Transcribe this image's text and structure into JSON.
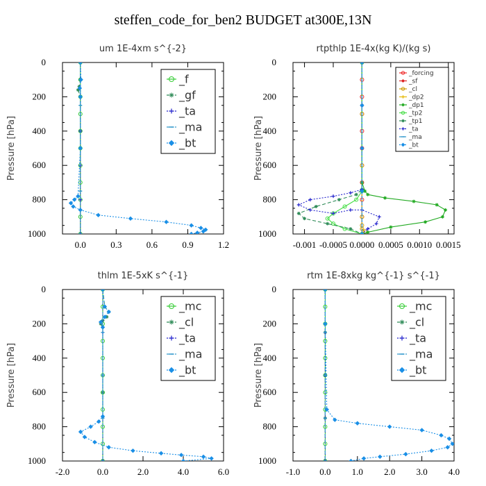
{
  "figure": {
    "title": "steffen_code_for_ben2  BUDGET at300E,13N"
  },
  "chart_data": [
    {
      "type": "line",
      "title": "um  1E-4xm s^{-2}",
      "ylabel": "Pressure [hPa]",
      "xlim": [
        -0.15,
        1.2
      ],
      "ylim": [
        1000,
        0
      ],
      "x_ticks": [
        0,
        0.3,
        0.6,
        0.9,
        1.2
      ],
      "x_tick_labels": [
        "0.0",
        "0.3",
        "0.6",
        "0.9",
        "1.2"
      ],
      "y_ticks": [
        0,
        200,
        400,
        600,
        800,
        1000
      ],
      "legend": {
        "position": "top-right",
        "size": "large"
      },
      "series": [
        {
          "name": "_f",
          "color": "#33cc33",
          "marker": "circle",
          "dash": "solid",
          "x": [
            0,
            0,
            0,
            0,
            0,
            0,
            0,
            0,
            0,
            0,
            0
          ],
          "y": [
            0,
            100,
            200,
            300,
            400,
            500,
            600,
            700,
            800,
            900,
            1000
          ]
        },
        {
          "name": "_gf",
          "color": "#2e8b57",
          "marker": "star",
          "dash": "dash",
          "x": [
            0,
            0,
            -0.01,
            -0.02,
            0,
            0,
            0
          ],
          "y": [
            0,
            100,
            140,
            160,
            200,
            400,
            1000
          ]
        },
        {
          "name": "_ta",
          "color": "#2222cc",
          "marker": "plus",
          "dash": "dot",
          "x": [
            0,
            0,
            0,
            0,
            0,
            0
          ],
          "y": [
            0,
            200,
            400,
            600,
            800,
            1000
          ]
        },
        {
          "name": "_ma",
          "color": "#3399cc",
          "marker": "dash",
          "dash": "dash",
          "x": [
            0,
            0,
            0,
            0,
            0
          ],
          "y": [
            0,
            250,
            500,
            750,
            1000
          ]
        },
        {
          "name": "_bt",
          "color": "#1a8fe6",
          "marker": "diamond",
          "dash": "dot",
          "x": [
            0,
            0.005,
            -0.005,
            0,
            0,
            -0.02,
            -0.05,
            -0.08,
            -0.06,
            0,
            0.15,
            0.42,
            0.72,
            0.93,
            1.01,
            1.05,
            1.03,
            0.98,
            0.93
          ],
          "y": [
            0,
            100,
            150,
            200,
            500,
            780,
            800,
            820,
            840,
            860,
            890,
            910,
            930,
            950,
            965,
            975,
            985,
            993,
            1000
          ]
        }
      ]
    },
    {
      "type": "line",
      "title": "rtpthlp  1E-4x(kg K)/(kg s)",
      "ylabel": "Pressure [hPa]",
      "xlim": [
        -0.0012,
        0.0016
      ],
      "ylim": [
        1000,
        0
      ],
      "x_ticks": [
        -0.001,
        -0.0005,
        0,
        0.0005,
        0.001,
        0.0015
      ],
      "x_tick_labels": [
        "-0.001",
        "-0.0005",
        "0.0000",
        "0.0005",
        "0.0010",
        "0.0015"
      ],
      "y_ticks": [
        0,
        200,
        400,
        600,
        800,
        1000
      ],
      "legend": {
        "position": "top-right",
        "size": "small"
      },
      "series": [
        {
          "name": "_forcing",
          "color": "#ee2222",
          "marker": "circle",
          "dash": "solid",
          "x": [
            0,
            0,
            0,
            0,
            0,
            0,
            0,
            0,
            0,
            0,
            0
          ],
          "y": [
            0,
            100,
            200,
            300,
            400,
            500,
            600,
            700,
            800,
            900,
            1000
          ]
        },
        {
          "name": "_sf",
          "color": "#dd2222",
          "marker": "star",
          "dash": "solid",
          "x": [
            0,
            0,
            0,
            0,
            0
          ],
          "y": [
            0,
            250,
            500,
            750,
            1000
          ]
        },
        {
          "name": "_cl",
          "color": "#cc9900",
          "marker": "circle",
          "dash": "solid",
          "x": [
            0,
            0,
            0,
            0,
            0,
            0,
            5e-05,
            0
          ],
          "y": [
            0,
            300,
            600,
            900,
            950,
            970,
            985,
            1000
          ]
        },
        {
          "name": "_dp2",
          "color": "#e6b800",
          "marker": "plus",
          "dash": "solid",
          "x": [
            0,
            0,
            0,
            0,
            0
          ],
          "y": [
            0,
            250,
            500,
            750,
            1000
          ]
        },
        {
          "name": "_dp1",
          "color": "#22aa22",
          "marker": "star",
          "dash": "solid",
          "x": [
            0,
            0,
            5e-05,
            0.0001,
            0.0004,
            0.0009,
            0.0013,
            0.00145,
            0.0014,
            0.0011,
            0.0005,
            0.0001,
            0
          ],
          "y": [
            0,
            700,
            750,
            770,
            790,
            810,
            830,
            860,
            900,
            930,
            960,
            990,
            1000
          ]
        },
        {
          "name": "_tp2",
          "color": "#44dd44",
          "marker": "circle",
          "dash": "solid",
          "x": [
            0,
            0,
            -0.0001,
            -0.0003,
            -0.0005,
            -0.0006,
            -0.0005,
            -0.0003,
            0
          ],
          "y": [
            0,
            750,
            800,
            840,
            880,
            910,
            940,
            970,
            1000
          ]
        },
        {
          "name": "_tp1",
          "color": "#2e8b57",
          "marker": "star",
          "dash": "dash",
          "x": [
            0,
            0,
            -0.0001,
            -0.0004,
            -0.0008,
            -0.0011,
            -0.001,
            -0.0006,
            -0.0002,
            0
          ],
          "y": [
            0,
            740,
            770,
            800,
            840,
            880,
            910,
            940,
            970,
            1000
          ]
        },
        {
          "name": "_ta",
          "color": "#2222cc",
          "marker": "plus",
          "dash": "dot",
          "x": [
            0,
            0,
            -0.0002,
            -0.0005,
            -0.0009,
            -0.0011,
            -0.0009,
            -0.0005,
            -0.0002,
            0,
            0.0003,
            0.00025,
            0.0001,
            0
          ],
          "y": [
            0,
            740,
            760,
            780,
            800,
            830,
            860,
            880,
            860,
            860,
            900,
            940,
            970,
            1000
          ]
        },
        {
          "name": "_ma",
          "color": "#3399cc",
          "marker": "dash",
          "dash": "dash",
          "x": [
            0,
            0,
            0,
            0,
            0
          ],
          "y": [
            0,
            250,
            500,
            750,
            1000
          ]
        },
        {
          "name": "_bt",
          "color": "#1a8fe6",
          "marker": "diamond",
          "dash": "dot",
          "x": [
            0,
            0,
            0,
            0,
            0
          ],
          "y": [
            0,
            250,
            500,
            750,
            1000
          ]
        }
      ]
    },
    {
      "type": "line",
      "title": "thlm  1E-5xK s^{-1}",
      "ylabel": "Pressure [hPa]",
      "xlim": [
        -2,
        6
      ],
      "ylim": [
        1000,
        0
      ],
      "x_ticks": [
        -2,
        0,
        2,
        4,
        6
      ],
      "x_tick_labels": [
        "-2.0",
        "0.0",
        "2.0",
        "4.0",
        "6.0"
      ],
      "y_ticks": [
        0,
        200,
        400,
        600,
        800,
        1000
      ],
      "legend": {
        "position": "top-right",
        "size": "large"
      },
      "series": [
        {
          "name": "_mc",
          "color": "#33cc33",
          "marker": "circle",
          "dash": "solid",
          "x": [
            0,
            0,
            0,
            0,
            0,
            0,
            0,
            0,
            0,
            0,
            0
          ],
          "y": [
            0,
            100,
            200,
            300,
            400,
            500,
            600,
            700,
            800,
            900,
            1000
          ]
        },
        {
          "name": "_cl",
          "color": "#2e8b57",
          "marker": "star",
          "dash": "dash",
          "x": [
            0,
            0.1,
            0.3,
            0.2,
            0,
            -0.1,
            0,
            0,
            0
          ],
          "y": [
            0,
            100,
            130,
            160,
            180,
            200,
            220,
            600,
            1000
          ]
        },
        {
          "name": "_ta",
          "color": "#2222cc",
          "marker": "plus",
          "dash": "dot",
          "x": [
            0,
            0,
            0,
            0,
            0
          ],
          "y": [
            0,
            250,
            500,
            750,
            1000
          ]
        },
        {
          "name": "_ma",
          "color": "#3399cc",
          "marker": "dash",
          "dash": "dash",
          "x": [
            0,
            0,
            0,
            0,
            0
          ],
          "y": [
            0,
            250,
            500,
            750,
            1000
          ]
        },
        {
          "name": "_bt",
          "color": "#1a8fe6",
          "marker": "diamond",
          "dash": "dot",
          "x": [
            0,
            0.1,
            0.3,
            0.1,
            -0.1,
            0,
            0,
            -0.2,
            -0.6,
            -1.1,
            -0.9,
            -0.4,
            0.3,
            1.5,
            2.9,
            3.9,
            5.0,
            5.4,
            4.0
          ],
          "y": [
            0,
            100,
            130,
            160,
            190,
            220,
            740,
            770,
            800,
            830,
            860,
            890,
            920,
            940,
            955,
            965,
            975,
            985,
            1000
          ]
        }
      ]
    },
    {
      "type": "line",
      "title": "rtm  1E-8xkg kg^{-1} s^{-1}",
      "ylabel": "Pressure [hPa]",
      "xlim": [
        -1,
        4
      ],
      "ylim": [
        1000,
        0
      ],
      "x_ticks": [
        -1,
        0,
        1,
        2,
        3,
        4
      ],
      "x_tick_labels": [
        "-1.0",
        "0.0",
        "1.0",
        "2.0",
        "3.0",
        "4.0"
      ],
      "y_ticks": [
        0,
        200,
        400,
        600,
        800,
        1000
      ],
      "legend": {
        "position": "top-right",
        "size": "large"
      },
      "series": [
        {
          "name": "_mc",
          "color": "#33cc33",
          "marker": "circle",
          "dash": "solid",
          "x": [
            0,
            0,
            0,
            0,
            0,
            0,
            0,
            0,
            0,
            0,
            0
          ],
          "y": [
            0,
            100,
            200,
            300,
            400,
            500,
            600,
            700,
            800,
            900,
            1000
          ]
        },
        {
          "name": "_cl",
          "color": "#2e8b57",
          "marker": "star",
          "dash": "dash",
          "x": [
            0,
            0,
            0,
            0,
            0
          ],
          "y": [
            0,
            250,
            500,
            750,
            1000
          ]
        },
        {
          "name": "_ta",
          "color": "#2222cc",
          "marker": "plus",
          "dash": "dot",
          "x": [
            0,
            0,
            0,
            0,
            0
          ],
          "y": [
            0,
            250,
            500,
            750,
            1000
          ]
        },
        {
          "name": "_ma",
          "color": "#3399cc",
          "marker": "dash",
          "dash": "dash",
          "x": [
            0,
            0,
            0,
            0,
            0
          ],
          "y": [
            0,
            250,
            500,
            750,
            1000
          ]
        },
        {
          "name": "_bt",
          "color": "#1a8fe6",
          "marker": "diamond",
          "dash": "dot",
          "x": [
            0,
            0,
            0.05,
            0.3,
            1.0,
            2.0,
            3.0,
            3.6,
            3.85,
            3.95,
            3.8,
            3.3,
            2.5,
            1.7,
            1.2,
            0.8
          ],
          "y": [
            0,
            200,
            700,
            760,
            780,
            800,
            820,
            850,
            870,
            900,
            920,
            940,
            960,
            975,
            985,
            1000
          ]
        }
      ]
    }
  ]
}
